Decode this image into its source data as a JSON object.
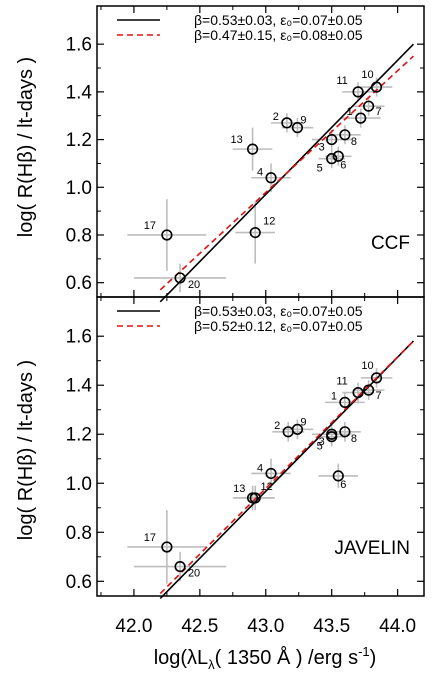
{
  "colors": {
    "obs_fit": "#000000",
    "bces_fit": "#e01010",
    "errorbar": "#bdbdbd",
    "marker_edge": "#000000"
  },
  "chart_data": {
    "type": "scatter",
    "xlabel_base": "log(λL",
    "xlabel_sub": "λ",
    "xlabel_tail": "( 1350 Å ) /erg s",
    "xlabel_sup": "-1",
    "xlabel_close": ")",
    "ylabel": "log( R(Hβ) / lt-days )",
    "x_ticks": [
      "42.0",
      "42.5",
      "43.0",
      "43.5",
      "44.0"
    ],
    "xlim": [
      41.72,
      44.2
    ],
    "panels": [
      {
        "tag": "CCF",
        "ylim": [
          0.54,
          1.76
        ],
        "y_ticks": [
          "0.6",
          "0.8",
          "1.0",
          "1.2",
          "1.4",
          "1.6"
        ],
        "legend": [
          {
            "style": "solid",
            "text": "β=0.53±0.03, ε₀=0.07±0.05"
          },
          {
            "style": "dashed",
            "text": "β=0.47±0.15, ε₀=0.08±0.05"
          }
        ],
        "fits": [
          {
            "style": "solid",
            "x": [
              42.2,
              44.12
            ],
            "y": [
              0.52,
              1.6
            ]
          },
          {
            "style": "dashed",
            "x": [
              42.2,
              44.12
            ],
            "y": [
              0.57,
              1.55
            ]
          }
        ],
        "points": [
          {
            "label": "1",
            "x": 43.72,
            "y": 1.29,
            "xerr": 0.15,
            "yerr": 0.04
          },
          {
            "label": "2",
            "x": 43.16,
            "y": 1.27,
            "xerr": 0.12,
            "yerr": 0.04
          },
          {
            "label": "3",
            "x": 43.5,
            "y": 1.2,
            "xerr": 0.15,
            "yerr": 0.04
          },
          {
            "label": "4",
            "x": 43.04,
            "y": 1.04,
            "xerr": 0.15,
            "yerr": 0.06
          },
          {
            "label": "5",
            "x": 43.5,
            "y": 1.12,
            "xerr": 0.1,
            "yerr": 0.04
          },
          {
            "label": "6",
            "x": 43.55,
            "y": 1.13,
            "xerr": 0.1,
            "yerr": 0.04
          },
          {
            "label": "7",
            "x": 43.78,
            "y": 1.34,
            "xerr": 0.12,
            "yerr": 0.04
          },
          {
            "label": "8",
            "x": 43.6,
            "y": 1.22,
            "xerr": 0.12,
            "yerr": 0.04
          },
          {
            "label": "9",
            "x": 43.24,
            "y": 1.25,
            "xerr": 0.12,
            "yerr": 0.04
          },
          {
            "label": "10",
            "x": 43.84,
            "y": 1.42,
            "xerr": 0.12,
            "yerr": 0.04
          },
          {
            "label": "11",
            "x": 43.7,
            "y": 1.4,
            "xerr": 0.12,
            "yerr": 0.04
          },
          {
            "label": "12",
            "x": 42.92,
            "y": 0.81,
            "xerr": 0.15,
            "yerr": 0.13
          },
          {
            "label": "13",
            "x": 42.9,
            "y": 1.16,
            "xerr": 0.15,
            "yerr": 0.09
          },
          {
            "label": "17",
            "x": 42.25,
            "y": 0.8,
            "xerr": 0.3,
            "yerr": 0.15
          },
          {
            "label": "20",
            "x": 42.35,
            "y": 0.62,
            "xerr": 0.35,
            "yerr": 0.06
          }
        ]
      },
      {
        "tag": "JAVELIN",
        "ylim": [
          0.54,
          1.76
        ],
        "y_ticks": [
          "0.6",
          "0.8",
          "1.0",
          "1.2",
          "1.4",
          "1.6"
        ],
        "legend": [
          {
            "style": "solid",
            "text": "β=0.53±0.03, ε₀=0.07±0.05"
          },
          {
            "style": "dashed",
            "text": "β=0.52±0.12, ε₀=0.07±0.05"
          }
        ],
        "fits": [
          {
            "style": "solid",
            "x": [
              42.2,
              44.12
            ],
            "y": [
              0.53,
              1.58
            ]
          },
          {
            "style": "dashed",
            "x": [
              42.2,
              44.12
            ],
            "y": [
              0.55,
              1.58
            ]
          }
        ],
        "points": [
          {
            "label": "1",
            "x": 43.6,
            "y": 1.33,
            "xerr": 0.15,
            "yerr": 0.04
          },
          {
            "label": "2",
            "x": 43.17,
            "y": 1.21,
            "xerr": 0.12,
            "yerr": 0.04
          },
          {
            "label": "3",
            "x": 43.5,
            "y": 1.2,
            "xerr": 0.15,
            "yerr": 0.04
          },
          {
            "label": "4",
            "x": 43.04,
            "y": 1.04,
            "xerr": 0.15,
            "yerr": 0.06
          },
          {
            "label": "5",
            "x": 43.5,
            "y": 1.19,
            "xerr": 0.1,
            "yerr": 0.04
          },
          {
            "label": "6",
            "x": 43.55,
            "y": 1.03,
            "xerr": 0.15,
            "yerr": 0.05
          },
          {
            "label": "7",
            "x": 43.78,
            "y": 1.38,
            "xerr": 0.12,
            "yerr": 0.04
          },
          {
            "label": "8",
            "x": 43.6,
            "y": 1.21,
            "xerr": 0.12,
            "yerr": 0.04
          },
          {
            "label": "9",
            "x": 43.24,
            "y": 1.22,
            "xerr": 0.12,
            "yerr": 0.04
          },
          {
            "label": "10",
            "x": 43.84,
            "y": 1.43,
            "xerr": 0.12,
            "yerr": 0.04
          },
          {
            "label": "11",
            "x": 43.7,
            "y": 1.37,
            "xerr": 0.12,
            "yerr": 0.04
          },
          {
            "label": "12",
            "x": 42.9,
            "y": 0.94,
            "xerr": 0.15,
            "yerr": 0.05
          },
          {
            "label": "13",
            "x": 42.92,
            "y": 0.94,
            "xerr": 0.15,
            "yerr": 0.05
          },
          {
            "label": "17",
            "x": 42.25,
            "y": 0.74,
            "xerr": 0.3,
            "yerr": 0.15
          },
          {
            "label": "20",
            "x": 42.35,
            "y": 0.66,
            "xerr": 0.35,
            "yerr": 0.06
          }
        ]
      }
    ]
  }
}
